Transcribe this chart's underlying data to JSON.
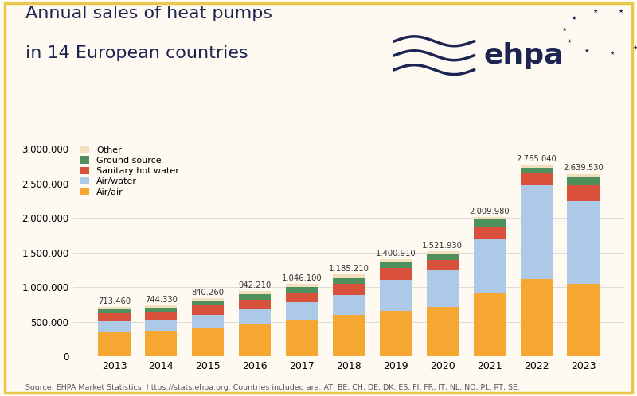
{
  "title_line1": "Annual sales of heat pumps",
  "title_line2": "in 14 European countries",
  "years": [
    2013,
    2014,
    2015,
    2016,
    2017,
    2018,
    2019,
    2020,
    2021,
    2022,
    2023
  ],
  "totals": [
    713460,
    744330,
    840260,
    942210,
    1046100,
    1185210,
    1400910,
    1521930,
    2009980,
    2765040,
    2639530
  ],
  "airair": [
    355000,
    368000,
    410000,
    460000,
    530000,
    600000,
    660000,
    720000,
    920000,
    1120000,
    1050000
  ],
  "airwater": [
    155000,
    162000,
    195000,
    225000,
    255000,
    290000,
    450000,
    540000,
    790000,
    1360000,
    1200000
  ],
  "sanitary": [
    112000,
    115000,
    130000,
    130000,
    125000,
    155000,
    165000,
    130000,
    170000,
    170000,
    230000
  ],
  "ground": [
    60000,
    63000,
    70000,
    80000,
    90000,
    95000,
    90000,
    90000,
    95000,
    75000,
    110000
  ],
  "other": [
    31460,
    36330,
    35260,
    47210,
    46100,
    45210,
    35910,
    41930,
    34980,
    40040,
    49530
  ],
  "colors": {
    "airair": "#F5A732",
    "airwater": "#ADC9E8",
    "sanitary": "#D9503A",
    "ground": "#4E8F5E",
    "other": "#F2E0BC"
  },
  "legend_labels": [
    "Other",
    "Ground source",
    "Sanitary hot water",
    "Air/water",
    "Air/air"
  ],
  "legend_colors": [
    "#F2E0BC",
    "#4E8F5E",
    "#D9503A",
    "#ADC9E8",
    "#F5A732"
  ],
  "bg_color": "#FEFAF2",
  "border_color": "#E8C84A",
  "source_text": "Source: EHPA Market Statistics, https://stats.ehpa.org. Countries included are: AT, BE, CH, DE, DK, ES, FI, FR, IT, NL, NO, PL, PT, SE.",
  "ylim": [
    0,
    3150000
  ],
  "yticks": [
    0,
    500000,
    1000000,
    1500000,
    2000000,
    2500000,
    3000000
  ],
  "title_color": "#1C2452",
  "text_color": "#333333",
  "logo_color": "#1C2452"
}
